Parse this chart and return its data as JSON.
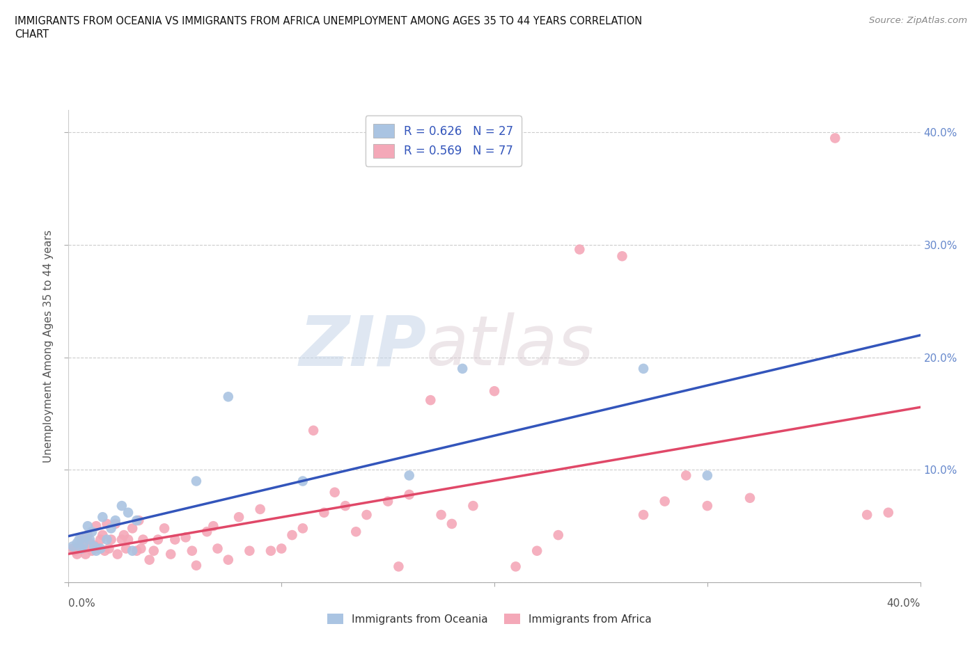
{
  "title_line1": "IMMIGRANTS FROM OCEANIA VS IMMIGRANTS FROM AFRICA UNEMPLOYMENT AMONG AGES 35 TO 44 YEARS CORRELATION",
  "title_line2": "CHART",
  "source": "Source: ZipAtlas.com",
  "ylabel": "Unemployment Among Ages 35 to 44 years",
  "xlim": [
    0.0,
    0.4
  ],
  "ylim": [
    0.0,
    0.42
  ],
  "oceania_color": "#aac4e2",
  "africa_color": "#f4a8b8",
  "oceania_line_color": "#3355bb",
  "africa_line_color": "#e04868",
  "oceania_R": 0.626,
  "oceania_N": 27,
  "africa_R": 0.569,
  "africa_N": 77,
  "watermark_zip": "ZIP",
  "watermark_atlas": "atlas",
  "background_color": "#ffffff",
  "grid_color": "#cccccc",
  "right_tick_color": "#6688cc",
  "oceania_x": [
    0.002,
    0.004,
    0.005,
    0.006,
    0.007,
    0.008,
    0.009,
    0.01,
    0.011,
    0.012,
    0.013,
    0.015,
    0.016,
    0.018,
    0.02,
    0.022,
    0.025,
    0.028,
    0.03,
    0.032,
    0.06,
    0.075,
    0.11,
    0.16,
    0.185,
    0.27,
    0.3
  ],
  "oceania_y": [
    0.032,
    0.035,
    0.038,
    0.03,
    0.033,
    0.04,
    0.05,
    0.038,
    0.045,
    0.032,
    0.028,
    0.03,
    0.058,
    0.038,
    0.048,
    0.055,
    0.068,
    0.062,
    0.028,
    0.055,
    0.09,
    0.165,
    0.09,
    0.095,
    0.19,
    0.19,
    0.095
  ],
  "africa_x": [
    0.002,
    0.003,
    0.004,
    0.005,
    0.006,
    0.007,
    0.008,
    0.009,
    0.01,
    0.011,
    0.012,
    0.013,
    0.014,
    0.015,
    0.016,
    0.017,
    0.018,
    0.019,
    0.02,
    0.022,
    0.023,
    0.025,
    0.026,
    0.027,
    0.028,
    0.03,
    0.032,
    0.033,
    0.034,
    0.035,
    0.038,
    0.04,
    0.042,
    0.045,
    0.048,
    0.05,
    0.055,
    0.058,
    0.06,
    0.065,
    0.068,
    0.07,
    0.075,
    0.08,
    0.085,
    0.09,
    0.095,
    0.1,
    0.105,
    0.11,
    0.115,
    0.12,
    0.125,
    0.13,
    0.135,
    0.14,
    0.15,
    0.155,
    0.16,
    0.17,
    0.175,
    0.18,
    0.19,
    0.2,
    0.21,
    0.22,
    0.23,
    0.24,
    0.26,
    0.27,
    0.28,
    0.29,
    0.3,
    0.32,
    0.36,
    0.375,
    0.385
  ],
  "africa_y": [
    0.03,
    0.028,
    0.025,
    0.032,
    0.038,
    0.03,
    0.025,
    0.042,
    0.035,
    0.028,
    0.033,
    0.05,
    0.03,
    0.038,
    0.042,
    0.028,
    0.052,
    0.03,
    0.038,
    0.052,
    0.025,
    0.038,
    0.042,
    0.03,
    0.038,
    0.048,
    0.028,
    0.055,
    0.03,
    0.038,
    0.02,
    0.028,
    0.038,
    0.048,
    0.025,
    0.038,
    0.04,
    0.028,
    0.015,
    0.045,
    0.05,
    0.03,
    0.02,
    0.058,
    0.028,
    0.065,
    0.028,
    0.03,
    0.042,
    0.048,
    0.135,
    0.062,
    0.08,
    0.068,
    0.045,
    0.06,
    0.072,
    0.014,
    0.078,
    0.162,
    0.06,
    0.052,
    0.068,
    0.17,
    0.014,
    0.028,
    0.042,
    0.296,
    0.29,
    0.06,
    0.072,
    0.095,
    0.068,
    0.075,
    0.395,
    0.06,
    0.062
  ]
}
